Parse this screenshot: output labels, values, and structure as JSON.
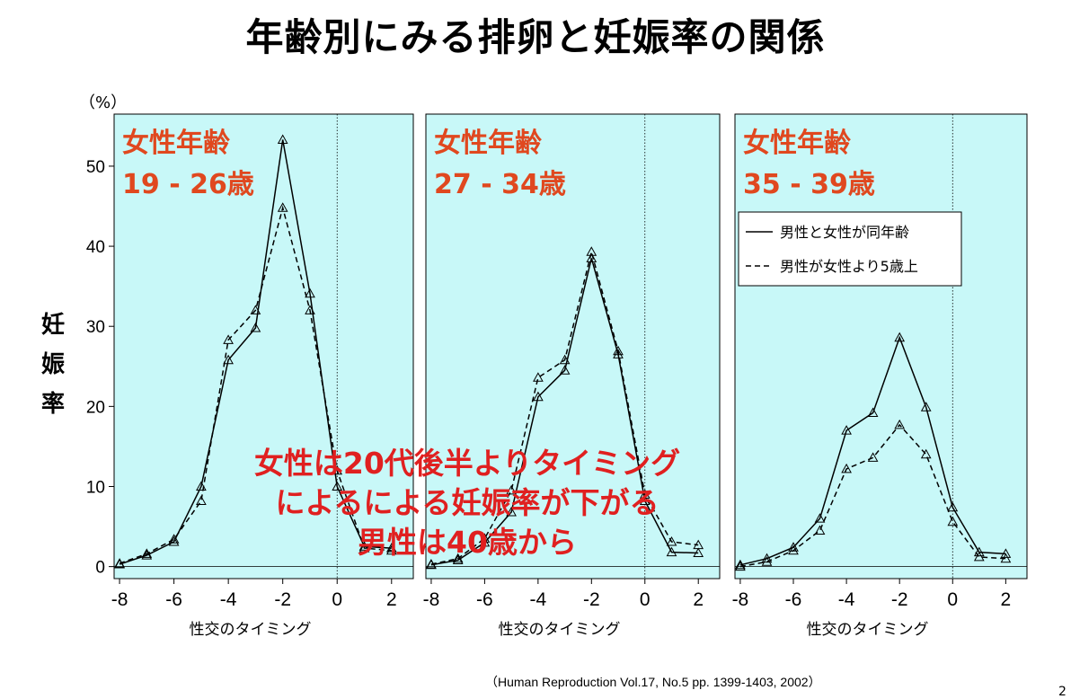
{
  "page": {
    "title": "年齢別にみる排卵と妊娠率の関係",
    "y_unit": "（%）",
    "y_label": [
      "妊",
      "娠",
      "率"
    ],
    "annotation": [
      "女性は20代後半よりタイミング",
      "によるによる妊娠率が下がる",
      "男性は40歳から"
    ],
    "source": "（Human  Reproduction Vol.17, No.5 pp. 1399-1403, 2002）",
    "page_number": "2"
  },
  "colors": {
    "panel_bg": "#c8f8f8",
    "panel_label": "#e0481f",
    "annotation": "#e02020",
    "line": "#000000"
  },
  "chart_data": {
    "type": "line",
    "x": [
      -8,
      -7,
      -6,
      -5,
      -4,
      -3,
      -2,
      -1,
      0,
      1,
      2
    ],
    "xlabel": "性交のタイミング",
    "xticks": [
      -8,
      -6,
      -4,
      -2,
      0,
      2
    ],
    "xlim": [
      -8.2,
      2.8
    ],
    "ylim": [
      -1.5,
      56.5
    ],
    "yticks": [
      0,
      10,
      20,
      30,
      40,
      50
    ],
    "grid": false,
    "reference_line_x": 0,
    "marker": "triangle",
    "legend": {
      "placement": "top-right of third panel",
      "entries": [
        {
          "label": "男性と女性が同年齢",
          "style": "solid"
        },
        {
          "label": "男性が女性より5歳上",
          "style": "dashed"
        }
      ]
    },
    "panels": [
      {
        "label_line1": "女性年齢",
        "label_line2": "19 - 26歳",
        "series": [
          {
            "style": "solid",
            "values": [
              0.3,
              1.4,
              3.1,
              10.0,
              25.8,
              29.8,
              53.3,
              34.1,
              10.0,
              2.5,
              2.3
            ]
          },
          {
            "style": "dashed",
            "values": [
              0.4,
              1.6,
              3.4,
              8.2,
              28.3,
              32.0,
              44.8,
              32.0,
              12.0,
              2.3,
              2.0
            ]
          }
        ]
      },
      {
        "label_line1": "女性年齢",
        "label_line2": "27 - 34歳",
        "series": [
          {
            "style": "solid",
            "values": [
              0.2,
              0.8,
              3.0,
              6.8,
              21.2,
              24.5,
              38.5,
              26.5,
              8.2,
              1.8,
              1.7
            ]
          },
          {
            "style": "dashed",
            "values": [
              0.3,
              1.0,
              3.5,
              9.5,
              23.6,
              25.8,
              39.3,
              26.9,
              9.0,
              3.1,
              2.7
            ]
          }
        ]
      },
      {
        "label_line1": "女性年齢",
        "label_line2": "35 - 39歳",
        "show_legend": true,
        "series": [
          {
            "style": "solid",
            "values": [
              0.2,
              1.0,
              2.4,
              6.0,
              17.0,
              19.2,
              28.6,
              19.9,
              7.4,
              1.8,
              1.6
            ]
          },
          {
            "style": "dashed",
            "values": [
              0.0,
              0.6,
              2.0,
              4.5,
              12.2,
              13.6,
              17.7,
              14.0,
              5.6,
              1.2,
              1.0
            ]
          }
        ]
      }
    ]
  }
}
